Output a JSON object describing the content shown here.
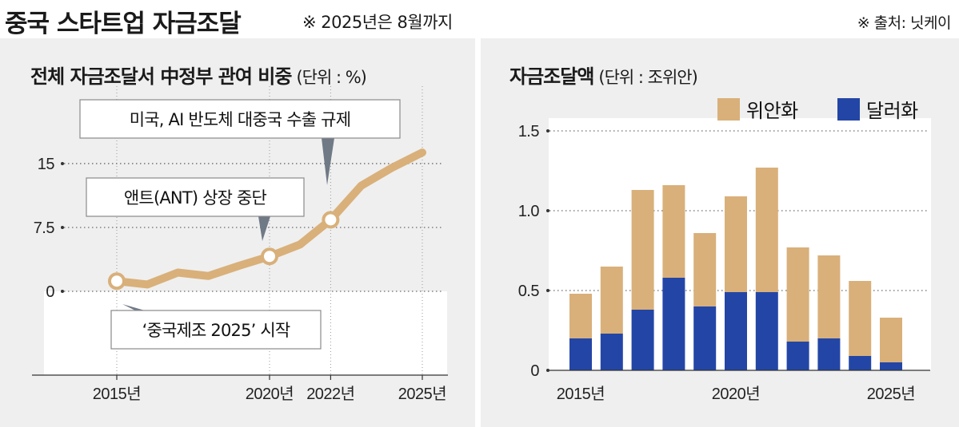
{
  "header": {
    "title": "중국 스타트업 자금조달",
    "note": "※ 2025년은 8월까지",
    "source": "※ 출처: 닛케이"
  },
  "chart_data": [
    {
      "type": "line",
      "title": "전체 자금조달서 中정부 관여 비중",
      "unit": "(단위 : %)",
      "x": [
        2015,
        2016,
        2017,
        2018,
        2019,
        2020,
        2021,
        2022,
        2023,
        2024,
        2025
      ],
      "values": [
        1.2,
        0.8,
        2.2,
        1.8,
        3.0,
        4.1,
        5.5,
        8.4,
        12.4,
        14.5,
        16.3
      ],
      "y_ticks": [
        {
          "value": 0,
          "label": "0"
        },
        {
          "value": 7.5,
          "label": "7.5"
        },
        {
          "value": 15,
          "label": "15"
        }
      ],
      "x_tick_labels": [
        {
          "x": 2015,
          "label": "2015년"
        },
        {
          "x": 2020,
          "label": "2020년"
        },
        {
          "x": 2022,
          "label": "2022년"
        },
        {
          "x": 2025,
          "label": "2025년"
        }
      ],
      "highlighted_points": [
        2015,
        2020,
        2022
      ],
      "annotations": [
        {
          "x": 2015,
          "text": "‘중국제조 2025’ 시작"
        },
        {
          "x": 2020,
          "text": "앤트(ANT) 상장 중단"
        },
        {
          "x": 2022,
          "text": "미국, AI 반도체 대중국 수출 규제"
        }
      ],
      "line_color": "#D9B07A",
      "grid": "dotted"
    },
    {
      "type": "bar",
      "stacked": true,
      "title": "자금조달액",
      "unit": "(단위 : 조위안)",
      "x": [
        2015,
        2016,
        2017,
        2018,
        2019,
        2020,
        2021,
        2022,
        2023,
        2024,
        2025
      ],
      "series": [
        {
          "name": "달러화",
          "color": "#2346A6",
          "values": [
            0.2,
            0.23,
            0.38,
            0.58,
            0.4,
            0.49,
            0.49,
            0.18,
            0.2,
            0.09,
            0.05
          ]
        },
        {
          "name": "위안화",
          "color": "#D9B07A",
          "values": [
            0.28,
            0.42,
            0.75,
            0.58,
            0.46,
            0.6,
            0.78,
            0.59,
            0.52,
            0.47,
            0.28
          ]
        }
      ],
      "ylim": [
        0,
        1.5
      ],
      "y_ticks": [
        {
          "value": 0,
          "label": "0"
        },
        {
          "value": 0.5,
          "label": "0.5"
        },
        {
          "value": 1.0,
          "label": "1.0"
        },
        {
          "value": 1.5,
          "label": "1.5"
        }
      ],
      "x_tick_labels": [
        {
          "x": 2015,
          "label": "2015년"
        },
        {
          "x": 2020,
          "label": "2020년"
        },
        {
          "x": 2025,
          "label": "2025년"
        }
      ],
      "legend": [
        "위안화",
        "달러화"
      ],
      "legend_position": "top-right",
      "grid": "dotted"
    }
  ]
}
